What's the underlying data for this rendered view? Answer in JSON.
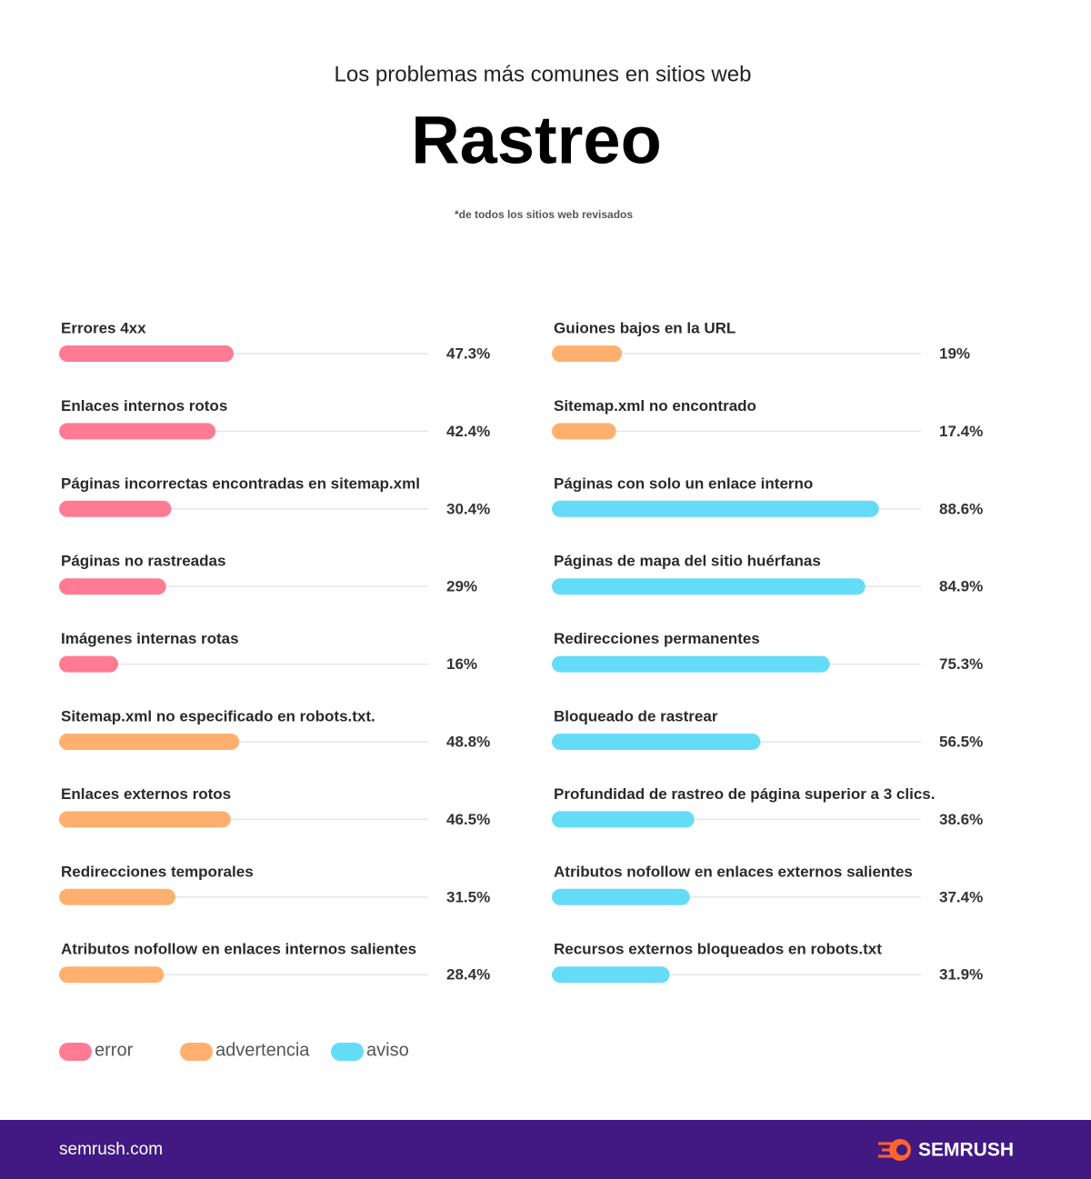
{
  "header": {
    "subtitle": "Los problemas más comunes en sitios web",
    "title": "Rastreo",
    "note": "*de todos los sitios web revisados"
  },
  "chart_data": [
    {
      "type": "bar",
      "orientation": "horizontal",
      "categories": [
        "Errores 4xx",
        "Enlaces internos rotos",
        "Páginas incorrectas encontradas en sitemap.xml",
        "Páginas no rastreadas",
        "Imágenes internas rotas",
        "Sitemap.xml no especificado en robots.txt.",
        "Enlaces externos rotos",
        "Redirecciones temporales",
        "Atributos nofollow en enlaces internos salientes"
      ],
      "values": [
        47.3,
        42.4,
        30.4,
        29,
        16,
        48.8,
        46.5,
        31.5,
        28.4
      ],
      "value_labels": [
        "47.3%",
        "42.4%",
        "30.4%",
        "29%",
        "16%",
        "48.8%",
        "46.5%",
        "31.5%",
        "28.4%"
      ],
      "colors": [
        "#ff7b93",
        "#ff7b93",
        "#ff7b93",
        "#ff7b93",
        "#ff7b93",
        "#ffb06f",
        "#ffb06f",
        "#ffb06f",
        "#ffb06f"
      ],
      "xlim": [
        0,
        100
      ]
    },
    {
      "type": "bar",
      "orientation": "horizontal",
      "categories": [
        "Guiones bajos en la URL",
        "Sitemap.xml no encontrado",
        "Páginas con solo un enlace interno",
        "Páginas de mapa del sitio huérfanas",
        "Redirecciones permanentes",
        "Bloqueado de rastrear",
        "Profundidad de rastreo de página superior a 3 clics.",
        "Atributos nofollow en enlaces externos salientes",
        "Recursos externos bloqueados en robots.txt"
      ],
      "values": [
        19,
        17.4,
        88.6,
        84.9,
        75.3,
        56.5,
        38.6,
        37.4,
        31.9
      ],
      "value_labels": [
        "19%",
        "17.4%",
        "88.6%",
        "84.9%",
        "75.3%",
        "56.5%",
        "38.6%",
        "37.4%",
        "31.9%"
      ],
      "colors": [
        "#ffb06f",
        "#ffb06f",
        "#64dcf8",
        "#64dcf8",
        "#64dcf8",
        "#64dcf8",
        "#64dcf8",
        "#64dcf8",
        "#64dcf8"
      ],
      "xlim": [
        0,
        100
      ]
    }
  ],
  "legend": [
    {
      "name": "error",
      "color": "#ff7b93"
    },
    {
      "name": "advertencia",
      "color": "#ffb06f"
    },
    {
      "name": "aviso",
      "color": "#64dcf8"
    }
  ],
  "footer": {
    "site": "semrush.com",
    "brand": "SEMRUSH"
  }
}
